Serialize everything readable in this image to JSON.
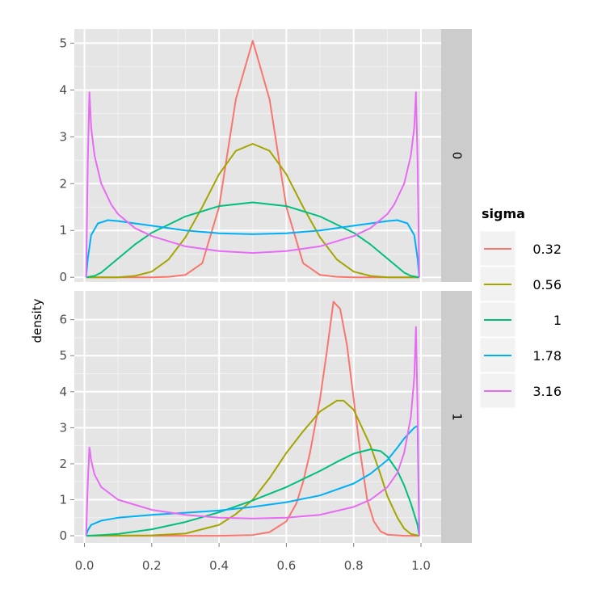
{
  "chart_data": {
    "type": "line",
    "title": "",
    "xlabel": "",
    "ylabel": "density",
    "xlim": [
      -0.03,
      1.06
    ],
    "x_ticks": [
      0.0,
      0.2,
      0.4,
      0.6,
      0.8,
      1.0
    ],
    "x_tick_labels": [
      "0.0",
      "0.2",
      "0.4",
      "0.6",
      "0.8",
      "1.0"
    ],
    "grid": true,
    "legend": {
      "title": "sigma",
      "placement": "right",
      "entries": [
        {
          "label": "0.32",
          "color": "#F8766D"
        },
        {
          "label": "0.56",
          "color": "#A3A500"
        },
        {
          "label": "1",
          "color": "#00BF7D"
        },
        {
          "label": "1.78",
          "color": "#00B0F6"
        },
        {
          "label": "3.16",
          "color": "#E76BF3"
        }
      ]
    },
    "panels": [
      {
        "strip": "0",
        "ylim": [
          -0.1,
          5.3
        ],
        "y_ticks": [
          0,
          1,
          2,
          3,
          4,
          5
        ],
        "y_tick_labels": [
          "0",
          "1",
          "2",
          "3",
          "4",
          "5"
        ],
        "series": [
          {
            "name": "0.32",
            "color": "#F8766D",
            "x": [
              0.005,
              0.1,
              0.2,
              0.25,
              0.3,
              0.35,
              0.4,
              0.45,
              0.5,
              0.55,
              0.6,
              0.65,
              0.7,
              0.75,
              0.8,
              0.9,
              0.995
            ],
            "y": [
              0,
              0,
              0,
              0.01,
              0.05,
              0.3,
              1.5,
              3.8,
              5.05,
              3.8,
              1.5,
              0.3,
              0.05,
              0.01,
              0,
              0,
              0
            ]
          },
          {
            "name": "0.56",
            "color": "#A3A500",
            "x": [
              0.005,
              0.1,
              0.15,
              0.2,
              0.25,
              0.3,
              0.35,
              0.4,
              0.45,
              0.5,
              0.55,
              0.6,
              0.65,
              0.7,
              0.75,
              0.8,
              0.85,
              0.9,
              0.995
            ],
            "y": [
              0,
              0,
              0.03,
              0.12,
              0.38,
              0.85,
              1.5,
              2.2,
              2.7,
              2.85,
              2.7,
              2.2,
              1.5,
              0.85,
              0.38,
              0.12,
              0.03,
              0,
              0
            ]
          },
          {
            "name": "1",
            "color": "#00BF7D",
            "x": [
              0.005,
              0.03,
              0.05,
              0.1,
              0.15,
              0.2,
              0.3,
              0.4,
              0.5,
              0.6,
              0.7,
              0.8,
              0.85,
              0.9,
              0.95,
              0.97,
              0.995
            ],
            "y": [
              0,
              0.03,
              0.1,
              0.4,
              0.7,
              0.95,
              1.3,
              1.52,
              1.6,
              1.52,
              1.3,
              0.95,
              0.7,
              0.4,
              0.1,
              0.03,
              0
            ]
          },
          {
            "name": "1.78",
            "color": "#00B0F6",
            "x": [
              0.005,
              0.01,
              0.02,
              0.04,
              0.07,
              0.1,
              0.2,
              0.3,
              0.4,
              0.5,
              0.6,
              0.7,
              0.8,
              0.9,
              0.93,
              0.96,
              0.98,
              0.99,
              0.995
            ],
            "y": [
              0,
              0.4,
              0.9,
              1.15,
              1.22,
              1.2,
              1.1,
              1.0,
              0.94,
              0.92,
              0.94,
              1.0,
              1.1,
              1.2,
              1.22,
              1.15,
              0.9,
              0.4,
              0
            ]
          },
          {
            "name": "3.16",
            "color": "#E76BF3",
            "x": [
              0.005,
              0.01,
              0.015,
              0.02,
              0.03,
              0.05,
              0.08,
              0.1,
              0.15,
              0.2,
              0.3,
              0.4,
              0.5,
              0.6,
              0.7,
              0.8,
              0.85,
              0.9,
              0.92,
              0.95,
              0.97,
              0.98,
              0.985,
              0.99,
              0.995
            ],
            "y": [
              0,
              2.5,
              3.95,
              3.2,
              2.6,
              2.0,
              1.55,
              1.35,
              1.05,
              0.88,
              0.66,
              0.56,
              0.52,
              0.56,
              0.66,
              0.88,
              1.05,
              1.35,
              1.55,
              2.0,
              2.6,
              3.2,
              3.95,
              2.5,
              0
            ]
          }
        ]
      },
      {
        "strip": "1",
        "ylim": [
          -0.2,
          6.8
        ],
        "y_ticks": [
          0,
          1,
          2,
          3,
          4,
          5,
          6
        ],
        "y_tick_labels": [
          "0",
          "1",
          "2",
          "3",
          "4",
          "5",
          "6"
        ],
        "series": [
          {
            "name": "0.32",
            "color": "#F8766D",
            "x": [
              0.005,
              0.4,
              0.5,
              0.55,
              0.6,
              0.63,
              0.65,
              0.67,
              0.7,
              0.72,
              0.74,
              0.76,
              0.78,
              0.8,
              0.82,
              0.84,
              0.86,
              0.88,
              0.9,
              0.95,
              0.995
            ],
            "y": [
              0,
              0,
              0.02,
              0.1,
              0.4,
              0.9,
              1.5,
              2.3,
              3.8,
              5.1,
              6.5,
              6.3,
              5.3,
              3.8,
              2.3,
              1.0,
              0.4,
              0.12,
              0.03,
              0,
              0
            ]
          },
          {
            "name": "0.56",
            "color": "#A3A500",
            "x": [
              0.005,
              0.2,
              0.3,
              0.4,
              0.45,
              0.5,
              0.55,
              0.6,
              0.65,
              0.7,
              0.75,
              0.77,
              0.8,
              0.85,
              0.88,
              0.9,
              0.93,
              0.95,
              0.97,
              0.995
            ],
            "y": [
              0,
              0.01,
              0.06,
              0.3,
              0.6,
              1.0,
              1.6,
              2.3,
              2.9,
              3.45,
              3.75,
              3.75,
              3.5,
              2.5,
              1.7,
              1.1,
              0.5,
              0.2,
              0.05,
              0
            ]
          },
          {
            "name": "1",
            "color": "#00BF7D",
            "x": [
              0.005,
              0.05,
              0.1,
              0.2,
              0.3,
              0.4,
              0.5,
              0.6,
              0.7,
              0.75,
              0.8,
              0.85,
              0.88,
              0.9,
              0.93,
              0.95,
              0.97,
              0.99,
              0.995
            ],
            "y": [
              0,
              0.02,
              0.05,
              0.18,
              0.38,
              0.65,
              0.98,
              1.35,
              1.8,
              2.05,
              2.28,
              2.4,
              2.35,
              2.2,
              1.8,
              1.4,
              0.9,
              0.3,
              0
            ]
          },
          {
            "name": "1.78",
            "color": "#00B0F6",
            "x": [
              0.005,
              0.01,
              0.02,
              0.05,
              0.1,
              0.2,
              0.3,
              0.4,
              0.5,
              0.6,
              0.7,
              0.8,
              0.85,
              0.9,
              0.93,
              0.95,
              0.97,
              0.98,
              0.99,
              0.995
            ],
            "y": [
              0,
              0.15,
              0.3,
              0.42,
              0.5,
              0.58,
              0.64,
              0.7,
              0.8,
              0.93,
              1.12,
              1.45,
              1.72,
              2.1,
              2.45,
              2.7,
              2.9,
              3.0,
              3.05,
              0
            ]
          },
          {
            "name": "3.16",
            "color": "#E76BF3",
            "x": [
              0.005,
              0.01,
              0.015,
              0.02,
              0.03,
              0.05,
              0.1,
              0.2,
              0.3,
              0.4,
              0.5,
              0.6,
              0.7,
              0.8,
              0.85,
              0.9,
              0.93,
              0.95,
              0.97,
              0.98,
              0.985,
              0.99,
              0.995
            ],
            "y": [
              0,
              1.5,
              2.45,
              2.1,
              1.7,
              1.35,
              1.0,
              0.72,
              0.58,
              0.5,
              0.48,
              0.5,
              0.58,
              0.8,
              1.0,
              1.35,
              1.75,
              2.3,
              3.3,
              4.4,
              5.8,
              3.5,
              0
            ]
          }
        ]
      }
    ]
  }
}
